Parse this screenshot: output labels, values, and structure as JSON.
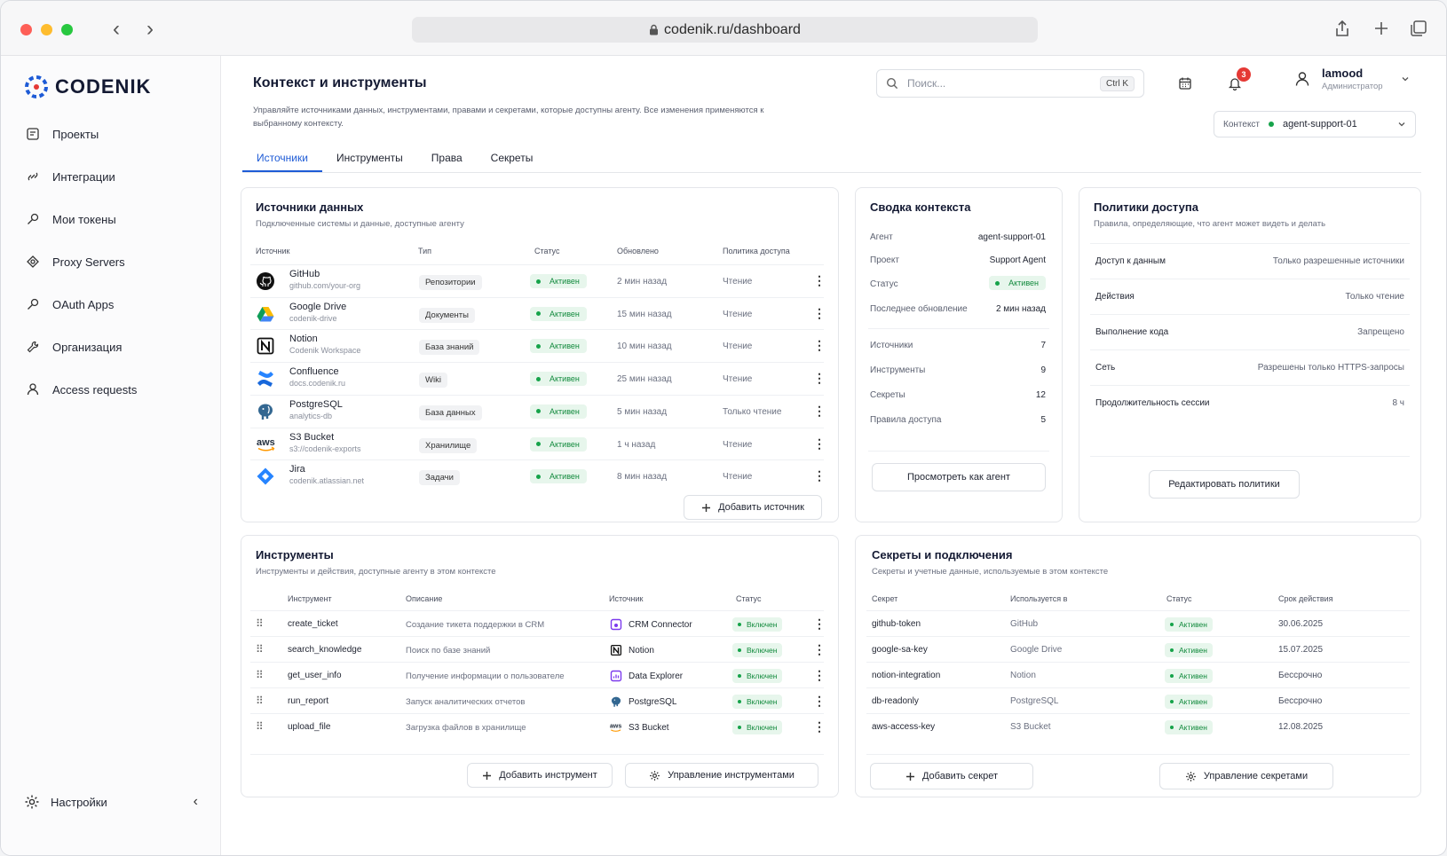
{
  "browser": {
    "url": "codenik.ru/dashboard"
  },
  "sidebar": {
    "logo": "CODENIK",
    "items": [
      {
        "label": "Проекты",
        "icon": "projects-icon"
      },
      {
        "label": "Интеграции",
        "icon": "integrations-icon"
      },
      {
        "label": "Мои токены",
        "icon": "key-icon"
      },
      {
        "label": "Proxy Servers",
        "icon": "proxy-icon"
      },
      {
        "label": "OAuth Apps",
        "icon": "key-icon"
      },
      {
        "label": "Организация",
        "icon": "wrench-icon"
      },
      {
        "label": "Access requests",
        "icon": "user-icon"
      }
    ],
    "settings": "Настройки"
  },
  "header": {
    "title": "Контекст и инструменты",
    "subtitle": "Управляйте источниками данных, инструментами, правами и секретами, которые доступны агенту. Все изменения применяются к выбранному контексту.",
    "search_placeholder": "Поиск...",
    "search_shortcut": "Ctrl K",
    "notifications_count": "3",
    "user_name": "lamood",
    "user_role": "Администратор",
    "context_label": "Контекст",
    "context_value": "agent-support-01"
  },
  "tabs": [
    "Источники",
    "Инструменты",
    "Права",
    "Секреты"
  ],
  "sources": {
    "title": "Источники данных",
    "subtitle": "Подключенные системы и данные, доступные агенту",
    "columns": [
      "Источник",
      "Тип",
      "Статус",
      "Обновлено",
      "Политика доступа"
    ],
    "rows": [
      {
        "name": "GitHub",
        "sub": "github.com/your-org",
        "type": "Репозитории",
        "status": "Активен",
        "updated": "2 мин назад",
        "policy": "Чтение"
      },
      {
        "name": "Google Drive",
        "sub": "codenik-drive",
        "type": "Документы",
        "status": "Активен",
        "updated": "15 мин назад",
        "policy": "Чтение"
      },
      {
        "name": "Notion",
        "sub": "Codenik Workspace",
        "type": "База знаний",
        "status": "Активен",
        "updated": "10 мин назад",
        "policy": "Чтение"
      },
      {
        "name": "Confluence",
        "sub": "docs.codenik.ru",
        "type": "Wiki",
        "status": "Активен",
        "updated": "25 мин назад",
        "policy": "Чтение"
      },
      {
        "name": "PostgreSQL",
        "sub": "analytics-db",
        "type": "База данных",
        "status": "Активен",
        "updated": "5 мин назад",
        "policy": "Только чтение"
      },
      {
        "name": "S3 Bucket",
        "sub": "s3://codenik-exports",
        "type": "Хранилище",
        "status": "Активен",
        "updated": "1 ч назад",
        "policy": "Чтение"
      },
      {
        "name": "Jira",
        "sub": "codenik.atlassian.net",
        "type": "Задачи",
        "status": "Активен",
        "updated": "8 мин назад",
        "policy": "Чтение"
      }
    ],
    "add_button": "Добавить источник"
  },
  "summary": {
    "title": "Сводка контекста",
    "rows": [
      {
        "k": "Агент",
        "v": "agent-support-01"
      },
      {
        "k": "Проект",
        "v": "Support Agent"
      },
      {
        "k": "Статус",
        "v": "Активен"
      },
      {
        "k": "Последнее обновление",
        "v": "2 мин назад"
      },
      {
        "k": "Источники",
        "v": "7"
      },
      {
        "k": "Инструменты",
        "v": "9"
      },
      {
        "k": "Секреты",
        "v": "12"
      },
      {
        "k": "Правила доступа",
        "v": "5"
      }
    ],
    "button": "Просмотреть как агент"
  },
  "policies": {
    "title": "Политики доступа",
    "subtitle": "Правила, определяющие, что агент может видеть и делать",
    "rows": [
      {
        "k": "Доступ к данным",
        "v": "Только разрешенные источники"
      },
      {
        "k": "Действия",
        "v": "Только чтение"
      },
      {
        "k": "Выполнение кода",
        "v": "Запрещено"
      },
      {
        "k": "Сеть",
        "v": "Разрешены только HTTPS-запросы"
      },
      {
        "k": "Продолжительность сессии",
        "v": "8 ч"
      }
    ],
    "button": "Редактировать политики"
  },
  "tools": {
    "title": "Инструменты",
    "subtitle": "Инструменты и действия, доступные агенту в этом контексте",
    "columns": [
      "Инструмент",
      "Описание",
      "Источник",
      "Статус"
    ],
    "rows": [
      {
        "name": "create_ticket",
        "desc": "Создание тикета поддержки в CRM",
        "source": "CRM Connector",
        "status": "Включен"
      },
      {
        "name": "search_knowledge",
        "desc": "Поиск по базе знаний",
        "source": "Notion",
        "status": "Включен"
      },
      {
        "name": "get_user_info",
        "desc": "Получение информации о пользователе",
        "source": "Data Explorer",
        "status": "Включен"
      },
      {
        "name": "run_report",
        "desc": "Запуск аналитических отчетов",
        "source": "PostgreSQL",
        "status": "Включен"
      },
      {
        "name": "upload_file",
        "desc": "Загрузка файлов в хранилище",
        "source": "S3 Bucket",
        "status": "Включен"
      }
    ],
    "add_button": "Добавить инструмент",
    "manage_button": "Управление инструментами"
  },
  "secrets": {
    "title": "Секреты и подключения",
    "subtitle": "Секреты и учетные данные, используемые в этом контексте",
    "columns": [
      "Секрет",
      "Используется в",
      "Статус",
      "Срок действия"
    ],
    "rows": [
      {
        "name": "github-token",
        "used": "GitHub",
        "status": "Активен",
        "exp": "30.06.2025"
      },
      {
        "name": "google-sa-key",
        "used": "Google Drive",
        "status": "Активен",
        "exp": "15.07.2025"
      },
      {
        "name": "notion-integration",
        "used": "Notion",
        "status": "Активен",
        "exp": "Бессрочно"
      },
      {
        "name": "db-readonly",
        "used": "PostgreSQL",
        "status": "Активен",
        "exp": "Бессрочно"
      },
      {
        "name": "aws-access-key",
        "used": "S3 Bucket",
        "status": "Активен",
        "exp": "12.08.2025"
      }
    ],
    "add_button": "Добавить секрет",
    "manage_button": "Управление секретами"
  },
  "colors": {
    "accent": "#1e5bd6",
    "success": "#16a34a",
    "badge": "#e53935"
  }
}
